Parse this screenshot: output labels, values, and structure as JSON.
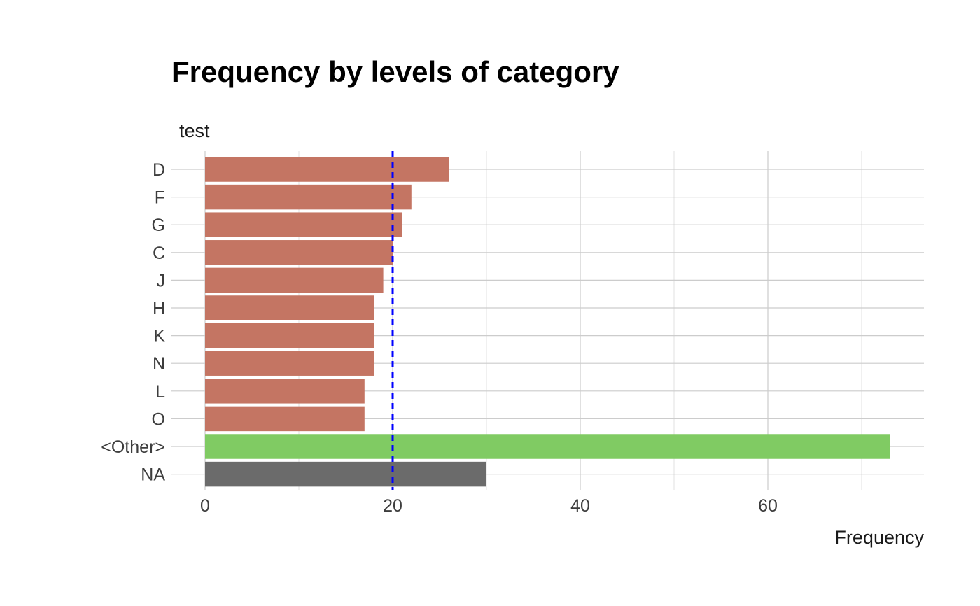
{
  "chart_data": {
    "type": "bar",
    "orientation": "horizontal",
    "title": "Frequency by levels of category",
    "ylabel": "test",
    "xlabel": "Frequency",
    "categories": [
      "D",
      "F",
      "G",
      "C",
      "J",
      "H",
      "K",
      "N",
      "L",
      "O",
      "<Other>",
      "NA"
    ],
    "values": [
      26,
      22,
      21,
      20,
      19,
      18,
      18,
      18,
      17,
      17,
      73,
      30
    ],
    "bar_groups": [
      "level",
      "level",
      "level",
      "level",
      "level",
      "level",
      "level",
      "level",
      "level",
      "level",
      "other",
      "na"
    ],
    "colors": {
      "level": "#c47563",
      "other": "#80cb63",
      "na": "#6b6b6b",
      "reference_line": "#0000ff"
    },
    "reference_line": {
      "value": 20,
      "style": "dashed"
    },
    "xlim": [
      0,
      76.7
    ],
    "xticks": [
      0,
      20,
      40,
      60
    ],
    "grid": true
  }
}
